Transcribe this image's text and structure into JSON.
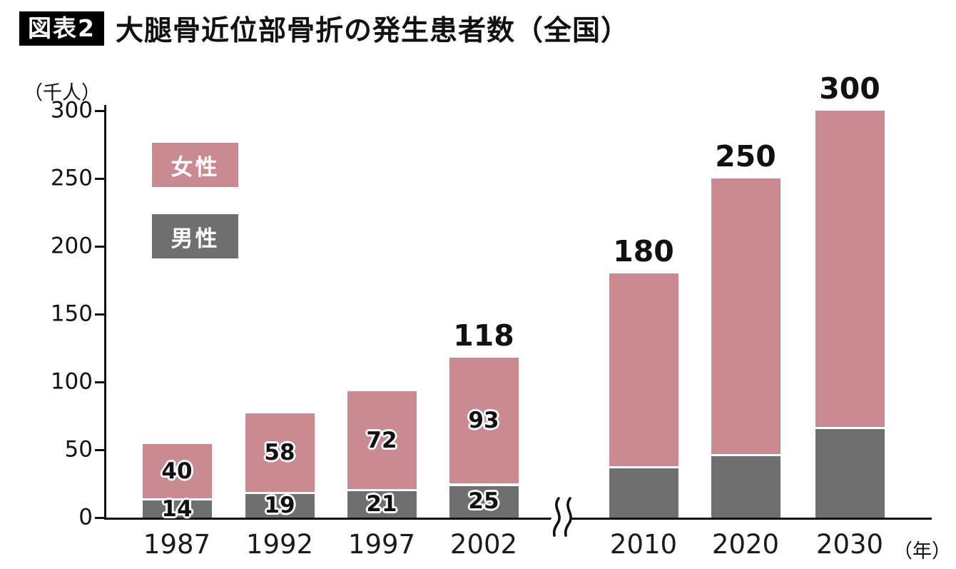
{
  "header": {
    "badge": "図表2",
    "title": "大腿骨近位部骨折の発生患者数（全国）"
  },
  "chart_data": {
    "type": "bar",
    "stacked": true,
    "title": "大腿骨近位部骨折の発生患者数（全国）",
    "y_unit_label": "（千人）",
    "x_unit_label": "（年）",
    "categories": [
      "1987",
      "1992",
      "1997",
      "2002",
      "2010",
      "2020",
      "2030"
    ],
    "series": [
      {
        "name": "女性",
        "color": "#c98b8f",
        "values": [
          40,
          58,
          72,
          93,
          142,
          203,
          233
        ],
        "value_labels": [
          "40",
          "58",
          "72",
          "93",
          "",
          "",
          ""
        ]
      },
      {
        "name": "男性",
        "color": "#6f6f6f",
        "values": [
          14,
          19,
          21,
          25,
          38,
          47,
          67
        ],
        "value_labels": [
          "14",
          "19",
          "21",
          "25",
          "",
          "",
          ""
        ]
      }
    ],
    "totals": [
      54,
      77,
      93,
      118,
      180,
      250,
      300
    ],
    "total_labels": [
      "",
      "",
      "",
      "118",
      "180",
      "250",
      "300"
    ],
    "ylim": [
      0,
      300
    ],
    "yticks": [
      0,
      50,
      100,
      150,
      200,
      250,
      300
    ],
    "grid": false,
    "legend_position": "upper-left",
    "axis_break_between": [
      "2002",
      "2010"
    ],
    "axis_color": "#111111"
  }
}
